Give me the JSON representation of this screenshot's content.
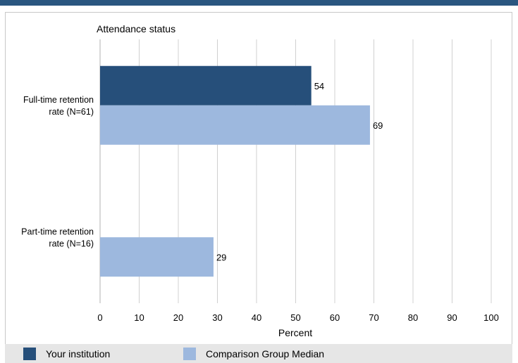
{
  "chart_data": {
    "type": "bar",
    "orientation": "horizontal",
    "title": "Attendance status",
    "xlabel": "Percent",
    "ylabel": "",
    "xlim": [
      0,
      100
    ],
    "ticks": [
      0,
      10,
      20,
      30,
      40,
      50,
      60,
      70,
      80,
      90,
      100
    ],
    "grid": true,
    "legend_position": "bottom",
    "categories": [
      {
        "line1": "Full-time retention",
        "line2": "rate (N=61)"
      },
      {
        "line1": "Part-time retention",
        "line2": "rate (N=16)"
      }
    ],
    "series": [
      {
        "name": "Your institution",
        "color": "#264f7a",
        "values": [
          54,
          null
        ]
      },
      {
        "name": "Comparison Group Median",
        "color": "#9db8de",
        "values": [
          69,
          29
        ]
      }
    ]
  }
}
